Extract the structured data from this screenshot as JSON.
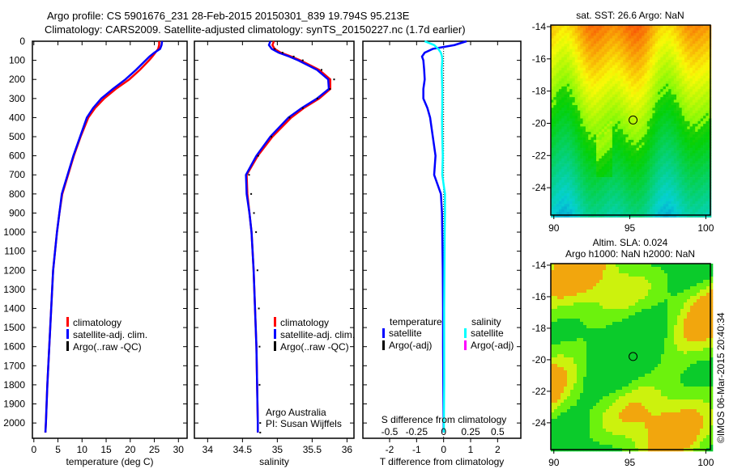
{
  "title": {
    "line1": "Argo profile: CS 5901676_231 28-Feb-2015 20150301_839 19.794S 95.213E",
    "line2": "Climatology: CARS2009. Satellite-adjusted climatology: synTS_20150227.nc (1.7d earlier)"
  },
  "credit": {
    "text": "©IMOS 06-Mar-2015 20:40:34"
  },
  "depth_axis": {
    "ticks": [
      0,
      100,
      200,
      300,
      400,
      500,
      600,
      700,
      800,
      900,
      1000,
      1100,
      1200,
      1300,
      1400,
      1500,
      1600,
      1700,
      1800,
      1900,
      2000
    ],
    "ylim": [
      0,
      2080
    ]
  },
  "chart_data": [
    {
      "type": "line",
      "name": "temperature",
      "xlabel": "temperature (deg C)",
      "xlim": [
        -0.3,
        31.8
      ],
      "xticks": [
        0,
        5,
        10,
        15,
        20,
        25,
        30
      ],
      "legend": [
        "climatology",
        "satellite-adj. clim.",
        "Argo(..raw -QC)"
      ],
      "legend_placement": "bottom-left",
      "depth": [
        0,
        20,
        40,
        60,
        80,
        100,
        150,
        200,
        250,
        300,
        350,
        400,
        500,
        600,
        700,
        800,
        900,
        1000,
        1200,
        1400,
        1600,
        1800,
        2000,
        2050
      ],
      "series": [
        {
          "name": "climatology",
          "color": "#ff0000",
          "values": [
            26.0,
            26.0,
            25.8,
            25.2,
            24.6,
            23.9,
            22.0,
            19.8,
            17.0,
            14.6,
            12.7,
            11.3,
            9.7,
            8.3,
            7.1,
            5.9,
            5.3,
            4.8,
            4.0,
            3.6,
            3.2,
            2.8,
            2.5,
            2.4
          ]
        },
        {
          "name": "satellite-adj. clim.",
          "color": "#0000ff",
          "values": [
            26.6,
            26.5,
            26.2,
            25.0,
            24.0,
            23.2,
            21.2,
            19.0,
            16.4,
            14.0,
            12.3,
            11.0,
            9.6,
            8.2,
            7.0,
            5.8,
            5.3,
            4.8,
            4.0,
            3.6,
            3.2,
            2.8,
            2.5,
            2.4
          ]
        }
      ]
    },
    {
      "type": "line",
      "name": "salinity",
      "xlabel": "salinity",
      "xlim": [
        33.81,
        36.1
      ],
      "xticks": [
        34,
        34.5,
        35,
        35.5,
        36
      ],
      "legend": [
        "climatology",
        "satellite-adj. clim.",
        "Argo(..raw -QC)"
      ],
      "legend_placement": "bottom-center",
      "annotation": [
        "Argo Australia",
        "PI: Susan Wijffels"
      ],
      "depth": [
        0,
        20,
        40,
        60,
        80,
        100,
        150,
        200,
        250,
        300,
        350,
        400,
        500,
        600,
        700,
        800,
        900,
        1000,
        1200,
        1400,
        1600,
        1800,
        2000,
        2050
      ],
      "series": [
        {
          "name": "climatology",
          "color": "#ff0000",
          "values": [
            34.95,
            34.93,
            34.96,
            35.05,
            35.2,
            35.33,
            35.6,
            35.76,
            35.76,
            35.6,
            35.38,
            35.2,
            34.93,
            34.72,
            34.56,
            34.57,
            34.6,
            34.63,
            34.66,
            34.68,
            34.7,
            34.71,
            34.72,
            34.72
          ]
        },
        {
          "name": "satellite-adj. clim.",
          "color": "#0000ff",
          "values": [
            34.9,
            34.88,
            34.92,
            35.02,
            35.17,
            35.3,
            35.57,
            35.73,
            35.74,
            35.57,
            35.35,
            35.16,
            34.9,
            34.7,
            34.55,
            34.56,
            34.6,
            34.63,
            34.66,
            34.68,
            34.7,
            34.71,
            34.72,
            34.72
          ]
        },
        {
          "name": "Argo(..raw -QC)",
          "color": "#000000",
          "values": [
            null,
            null,
            34.93,
            35.04,
            35.2,
            35.33,
            35.6,
            35.78,
            35.72,
            35.54,
            35.33,
            35.14,
            34.88,
            34.69,
            34.56,
            34.59,
            34.63,
            34.66,
            34.68,
            34.7,
            34.71,
            34.71,
            34.72,
            34.72
          ]
        }
      ]
    },
    {
      "type": "line",
      "name": "difference",
      "xlabel": "T difference from climatology",
      "xlim": [
        -2.99,
        2.86
      ],
      "xticks": [
        -2,
        -1,
        0,
        1,
        2
      ],
      "x2label": "S difference from climatology",
      "x2ticks": [
        "-0.5",
        "-0.25",
        "0",
        "0.25",
        "0.5"
      ],
      "legend_headers": [
        "temperature",
        "salinity"
      ],
      "legend": [
        "satellite",
        "Argo(-adj)",
        "satellite",
        "Argo(-adj)"
      ],
      "legend_colors": [
        "#0000ff",
        "#000000",
        "#00ffff",
        "#ff00ff"
      ],
      "depth": [
        0,
        20,
        40,
        60,
        80,
        100,
        150,
        200,
        250,
        300,
        350,
        400,
        500,
        600,
        700,
        800,
        900,
        1000,
        1200,
        1400,
        1600,
        1800,
        2000,
        2050
      ],
      "series": [
        {
          "name": "T satellite",
          "color": "#0000ff",
          "values": [
            0.85,
            0.4,
            -0.4,
            -0.7,
            -0.8,
            -0.75,
            -0.72,
            -0.7,
            -0.75,
            -0.75,
            -0.6,
            -0.5,
            -0.4,
            -0.3,
            -0.35,
            -0.1,
            -0.06,
            -0.05,
            -0.03,
            -0.02,
            -0.02,
            -0.01,
            0.0,
            0.0
          ]
        },
        {
          "name": "S satellite (x4 scale)",
          "color": "#00ffff",
          "values": [
            -0.7,
            -0.35,
            -0.2,
            -0.1,
            -0.06,
            -0.05,
            -0.07,
            -0.06,
            -0.05,
            -0.05,
            -0.05,
            -0.06,
            -0.05,
            -0.03,
            -0.05,
            0.05,
            0.05,
            0.04,
            0.03,
            0.02,
            0.02,
            0.02,
            0.01,
            0.01
          ]
        }
      ]
    },
    {
      "type": "heatmap",
      "name": "sst-map",
      "title": "sat. SST: 26.6 Argo: NaN",
      "xticks": [
        90,
        95,
        100
      ],
      "yticks": [
        -14,
        -16,
        -18,
        -20,
        -22,
        -24
      ],
      "xlim": [
        89.8,
        100.3
      ],
      "ylim": [
        -25.7,
        -13.9
      ],
      "marker": {
        "lon": 95.213,
        "lat": -19.794
      }
    },
    {
      "type": "heatmap",
      "name": "sla-map",
      "title": [
        "Altim. SLA: 0.024",
        "Argo h1000: NaN h2000: NaN"
      ],
      "xticks": [
        90,
        95,
        100
      ],
      "yticks": [
        -14,
        -16,
        -18,
        -20,
        -22,
        -24
      ],
      "xlim": [
        89.8,
        100.3
      ],
      "ylim": [
        -25.7,
        -13.9
      ],
      "marker": {
        "lon": 95.213,
        "lat": -19.794
      }
    }
  ]
}
